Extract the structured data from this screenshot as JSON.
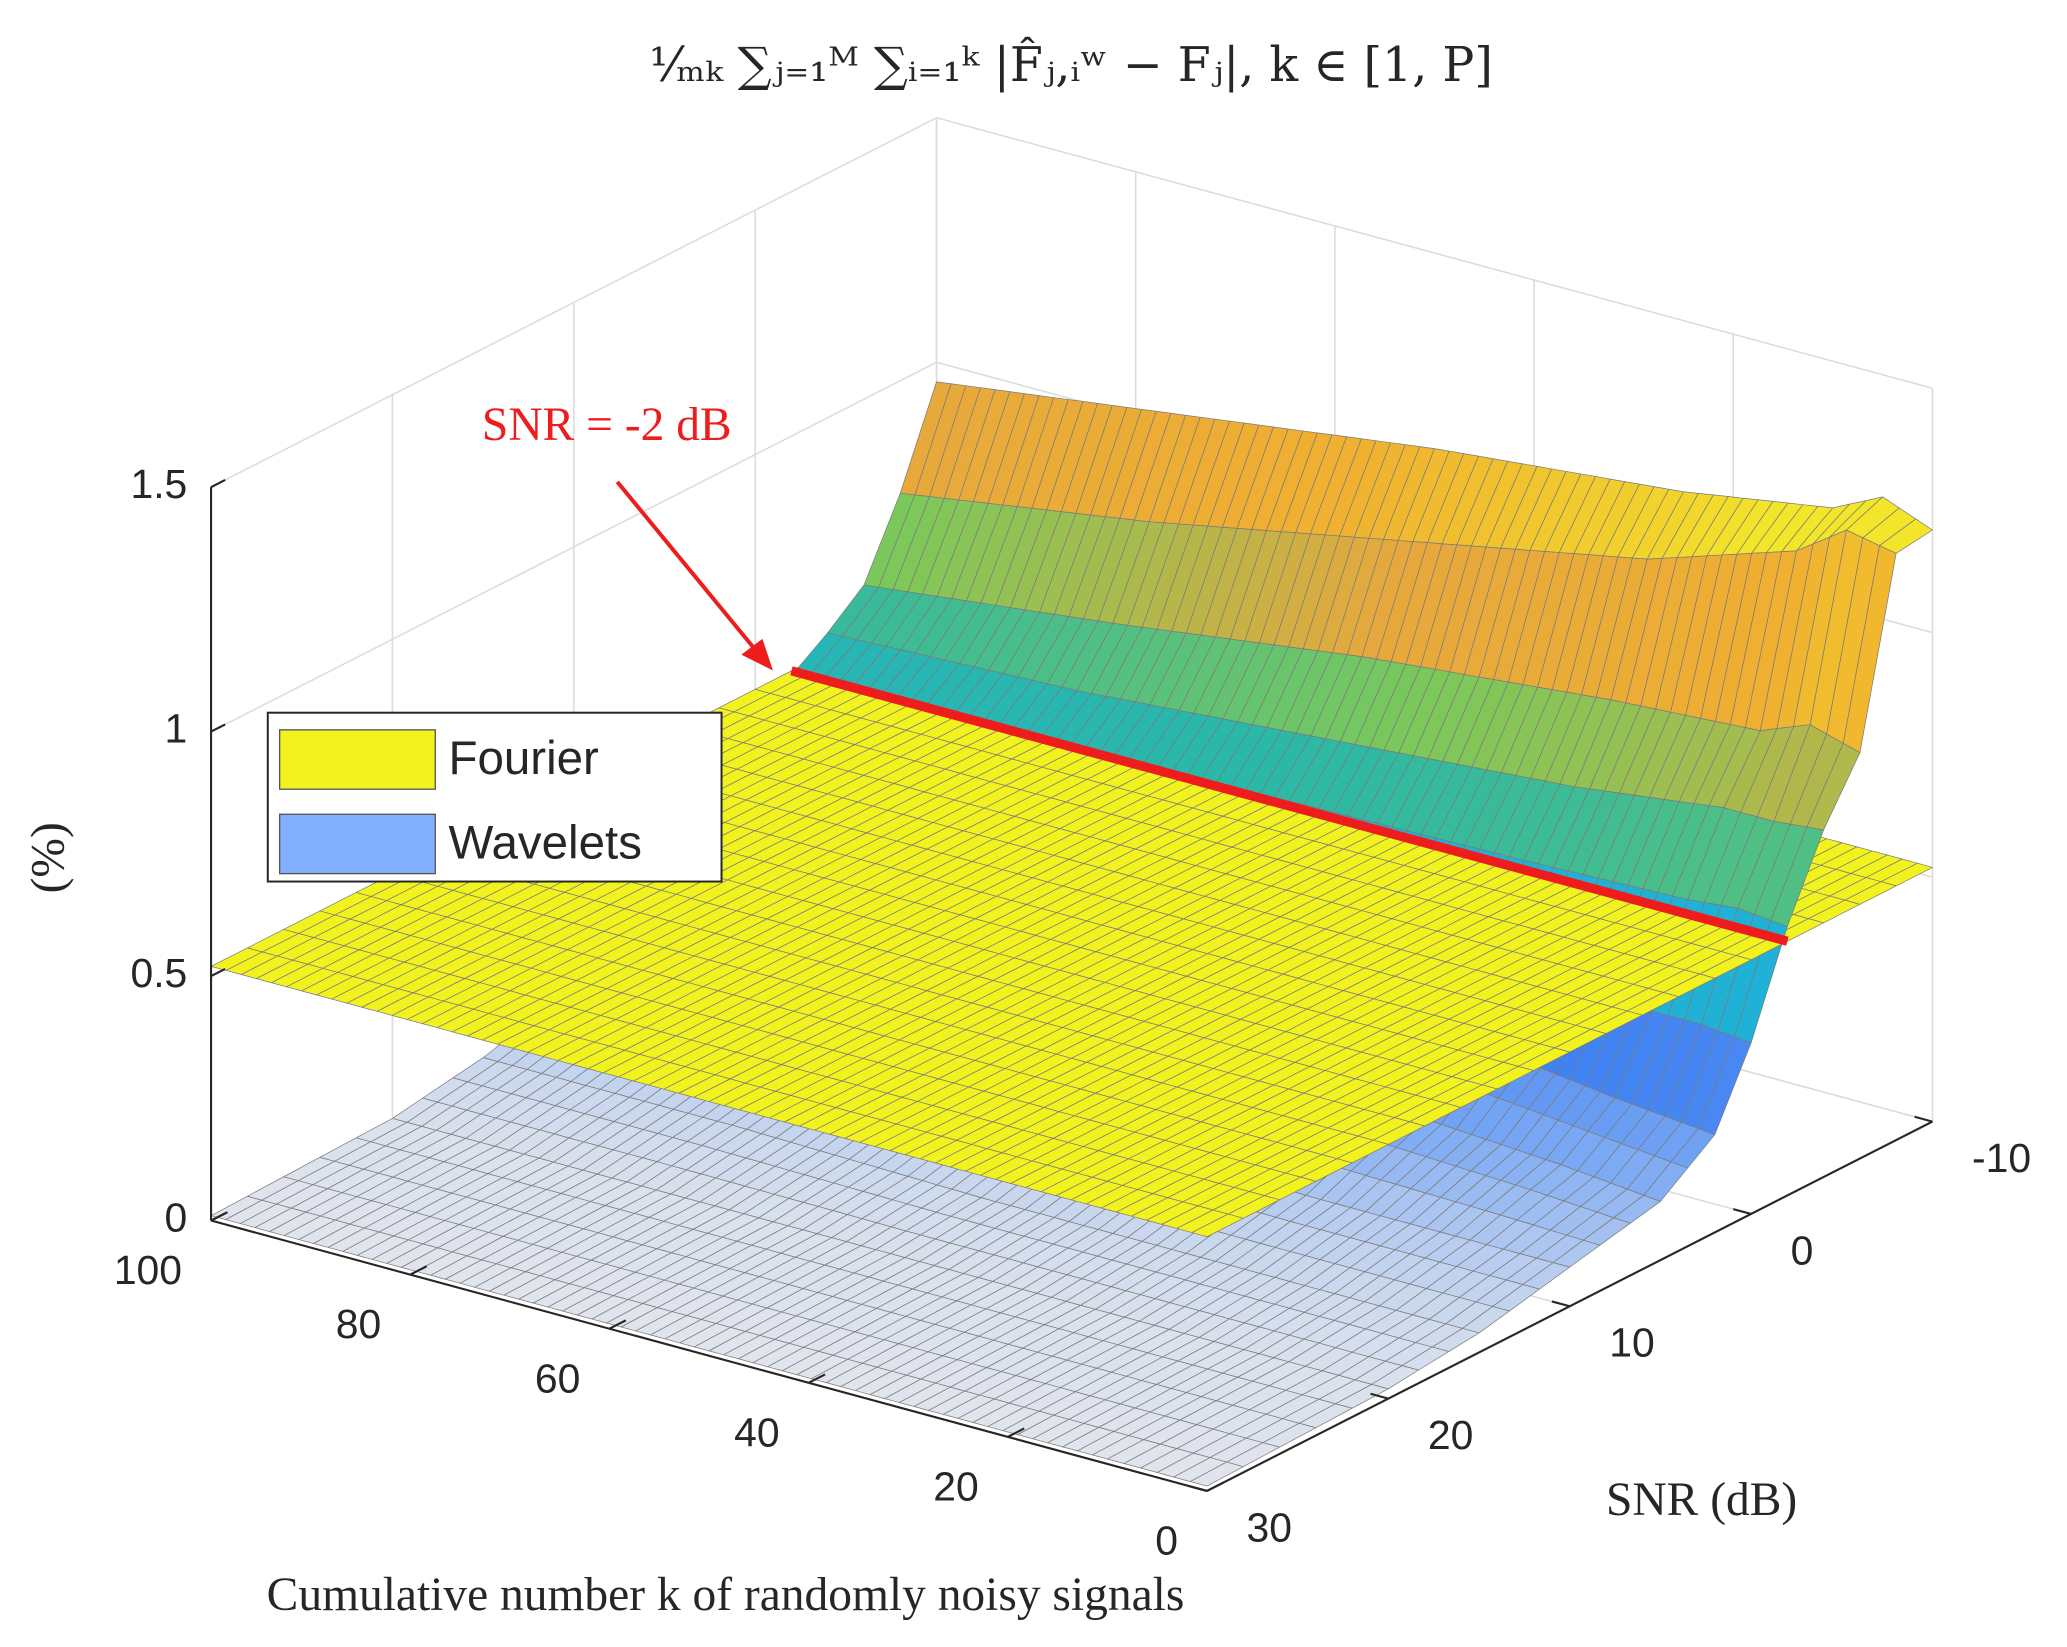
{
  "chart_data": {
    "type": "surface",
    "title": "¹⁄ₘₖ ∑ⱼ₌₁ᴹ ∑ᵢ₌₁ᵏ |F̂ⱼ,ᵢʷ − Fⱼ|, k ∈ [1, P]",
    "xlabel": "Cumulative number k of randomly noisy signals",
    "ylabel": "SNR (dB)",
    "zlabel": "(%)",
    "xlim": [
      0,
      100
    ],
    "xticks": [
      0,
      20,
      40,
      60,
      80,
      100
    ],
    "ylim": [
      -10,
      30
    ],
    "yticks": [
      -10,
      0,
      10,
      20,
      30
    ],
    "zlim": [
      0,
      1.5
    ],
    "zticks": [
      0,
      0.5,
      1,
      1.5
    ],
    "grid": true,
    "legend": "west",
    "series": [
      {
        "name": "Fourier",
        "color": "#f2f21e",
        "x": [
          0,
          100
        ],
        "y": [
          -10,
          30
        ],
        "values": [
          [
            0.52,
            0.52
          ],
          [
            0.52,
            0.52
          ]
        ]
      },
      {
        "name": "Wavelets",
        "color": "#80b0ff",
        "x": [
          0,
          5,
          10,
          25,
          50,
          75,
          100
        ],
        "y": [
          -10,
          -8,
          -6,
          -4,
          -2,
          0,
          2,
          5,
          10,
          15,
          20,
          30
        ],
        "values": [
          [
            1.21,
            1.2,
            0.83,
            0.71,
            0.55,
            0.35,
            0.2,
            0.12,
            0.08,
            0.04,
            0.02,
            0.01
          ],
          [
            1.25,
            1.22,
            0.86,
            0.7,
            0.56,
            0.36,
            0.21,
            0.13,
            0.08,
            0.04,
            0.02,
            0.01
          ],
          [
            1.2,
            1.15,
            0.82,
            0.7,
            0.55,
            0.36,
            0.22,
            0.14,
            0.08,
            0.04,
            0.02,
            0.01
          ],
          [
            1.15,
            1.05,
            0.8,
            0.66,
            0.54,
            0.38,
            0.26,
            0.16,
            0.08,
            0.04,
            0.02,
            0.01
          ],
          [
            1.1,
            0.95,
            0.75,
            0.62,
            0.53,
            0.4,
            0.29,
            0.18,
            0.09,
            0.04,
            0.02,
            0.01
          ],
          [
            1.03,
            0.85,
            0.68,
            0.58,
            0.52,
            0.41,
            0.31,
            0.2,
            0.09,
            0.05,
            0.02,
            0.01
          ],
          [
            0.96,
            0.77,
            0.62,
            0.56,
            0.51,
            0.42,
            0.33,
            0.22,
            0.1,
            0.05,
            0.02,
            0.01
          ]
        ],
        "colormap": [
          {
            "value": 0,
            "color": "#e6e8ec"
          },
          {
            "value": 0.06,
            "color": "#c2d3ef"
          },
          {
            "value": 0.15,
            "color": "#7daaf4"
          },
          {
            "value": 0.3,
            "color": "#3f82f2"
          },
          {
            "value": 0.45,
            "color": "#1fb1d8"
          },
          {
            "value": 0.57,
            "color": "#2ab8a8"
          },
          {
            "value": 0.7,
            "color": "#7cc85a"
          },
          {
            "value": 0.85,
            "color": "#e6a83c"
          },
          {
            "value": 1.0,
            "color": "#f0b030"
          },
          {
            "value": 1.15,
            "color": "#f3e62a"
          }
        ]
      }
    ],
    "highlight": {
      "label": "SNR = -2 dB",
      "y": -2,
      "color": "#ee1c1c"
    }
  }
}
